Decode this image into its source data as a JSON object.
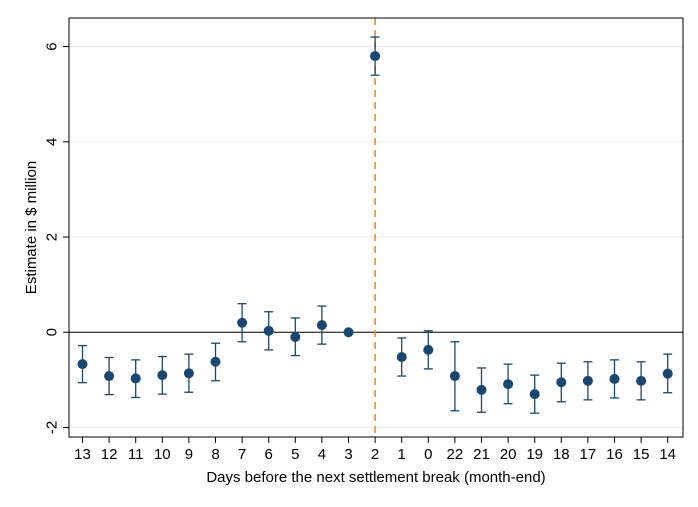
{
  "chart_data": {
    "type": "scatter",
    "subtype": "coefficient plot with 95% confidence intervals",
    "xlabel": "Days before the next settlement break (month-end)",
    "ylabel": "Estimate in $ million",
    "categories": [
      "13",
      "12",
      "11",
      "10",
      "9",
      "8",
      "7",
      "6",
      "5",
      "4",
      "3",
      "2",
      "1",
      "0",
      "22",
      "21",
      "20",
      "19",
      "18",
      "17",
      "16",
      "15",
      "14"
    ],
    "estimates": [
      -0.67,
      -0.92,
      -0.97,
      -0.9,
      -0.86,
      -0.62,
      0.2,
      0.03,
      -0.1,
      0.15,
      0.0,
      5.8,
      -0.52,
      -0.37,
      -0.92,
      -1.21,
      -1.09,
      -1.3,
      -1.05,
      -1.02,
      -0.98,
      -1.02,
      -0.87
    ],
    "ci_lower": [
      -1.06,
      -1.31,
      -1.37,
      -1.3,
      -1.26,
      -1.02,
      -0.2,
      -0.37,
      -0.49,
      -0.25,
      null,
      5.4,
      -0.92,
      -0.77,
      -1.65,
      -1.68,
      -1.5,
      -1.7,
      -1.46,
      -1.42,
      -1.38,
      -1.42,
      -1.27
    ],
    "ci_upper": [
      -0.28,
      -0.53,
      -0.58,
      -0.51,
      -0.46,
      -0.23,
      0.6,
      0.43,
      0.3,
      0.55,
      null,
      6.2,
      -0.12,
      0.03,
      -0.2,
      -0.75,
      -0.67,
      -0.9,
      -0.65,
      -0.62,
      -0.58,
      -0.62,
      -0.46
    ],
    "ylim": [
      -2.2,
      6.6
    ],
    "yticks": [
      -2,
      0,
      2,
      4,
      6
    ],
    "reference_line_y": 0,
    "vertical_marker_category": "2",
    "grid": "horizontal",
    "legend": "none",
    "colors": {
      "marker": "#1a476f",
      "vertical_line": "#f08a24",
      "grid": "#eaeaea",
      "reference_line": "#000000"
    }
  }
}
